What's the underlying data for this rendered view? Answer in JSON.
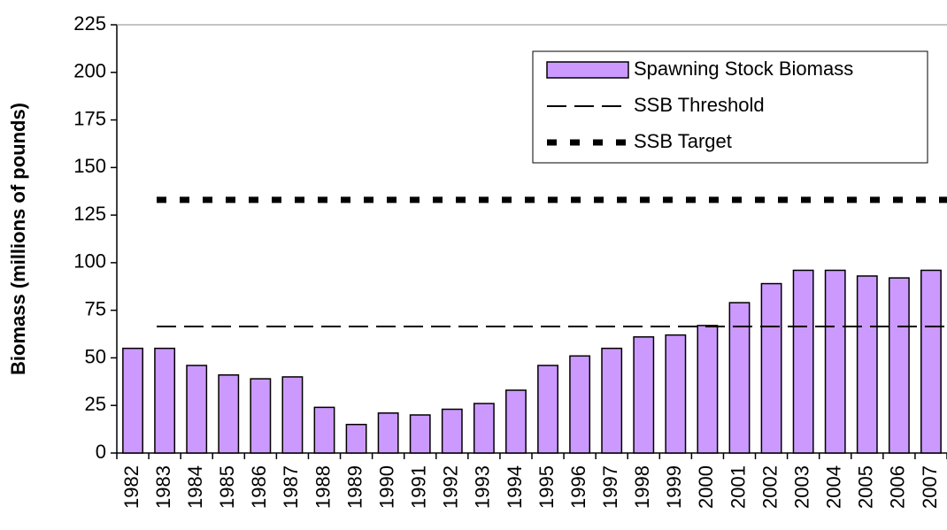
{
  "chart_data": {
    "type": "bar",
    "y_label": "Biomass (millions of pounds)",
    "categories": [
      "1982",
      "1983",
      "1984",
      "1985",
      "1986",
      "1987",
      "1988",
      "1989",
      "1990",
      "1991",
      "1992",
      "1993",
      "1994",
      "1995",
      "1996",
      "1997",
      "1998",
      "1999",
      "2000",
      "2001",
      "2002",
      "2003",
      "2004",
      "2005",
      "2006",
      "2007"
    ],
    "series": [
      {
        "name": "Spawning Stock Biomass",
        "color": "#cc99ff",
        "values": [
          55,
          55,
          46,
          41,
          39,
          40,
          24,
          15,
          21,
          20,
          23,
          26,
          33,
          46,
          51,
          55,
          61,
          62,
          67,
          79,
          89,
          96,
          96,
          93,
          92,
          96
        ]
      }
    ],
    "reference_lines": [
      {
        "name": "SSB Threshold",
        "value": 66.5,
        "style": "dashed",
        "color": "#000000"
      },
      {
        "name": "SSB Target",
        "value": 133,
        "style": "dotted",
        "color": "#000000"
      }
    ],
    "ylim": [
      0,
      225
    ],
    "yticks": [
      0,
      25,
      50,
      75,
      100,
      125,
      150,
      175,
      200,
      225
    ],
    "legend": "upper right"
  }
}
